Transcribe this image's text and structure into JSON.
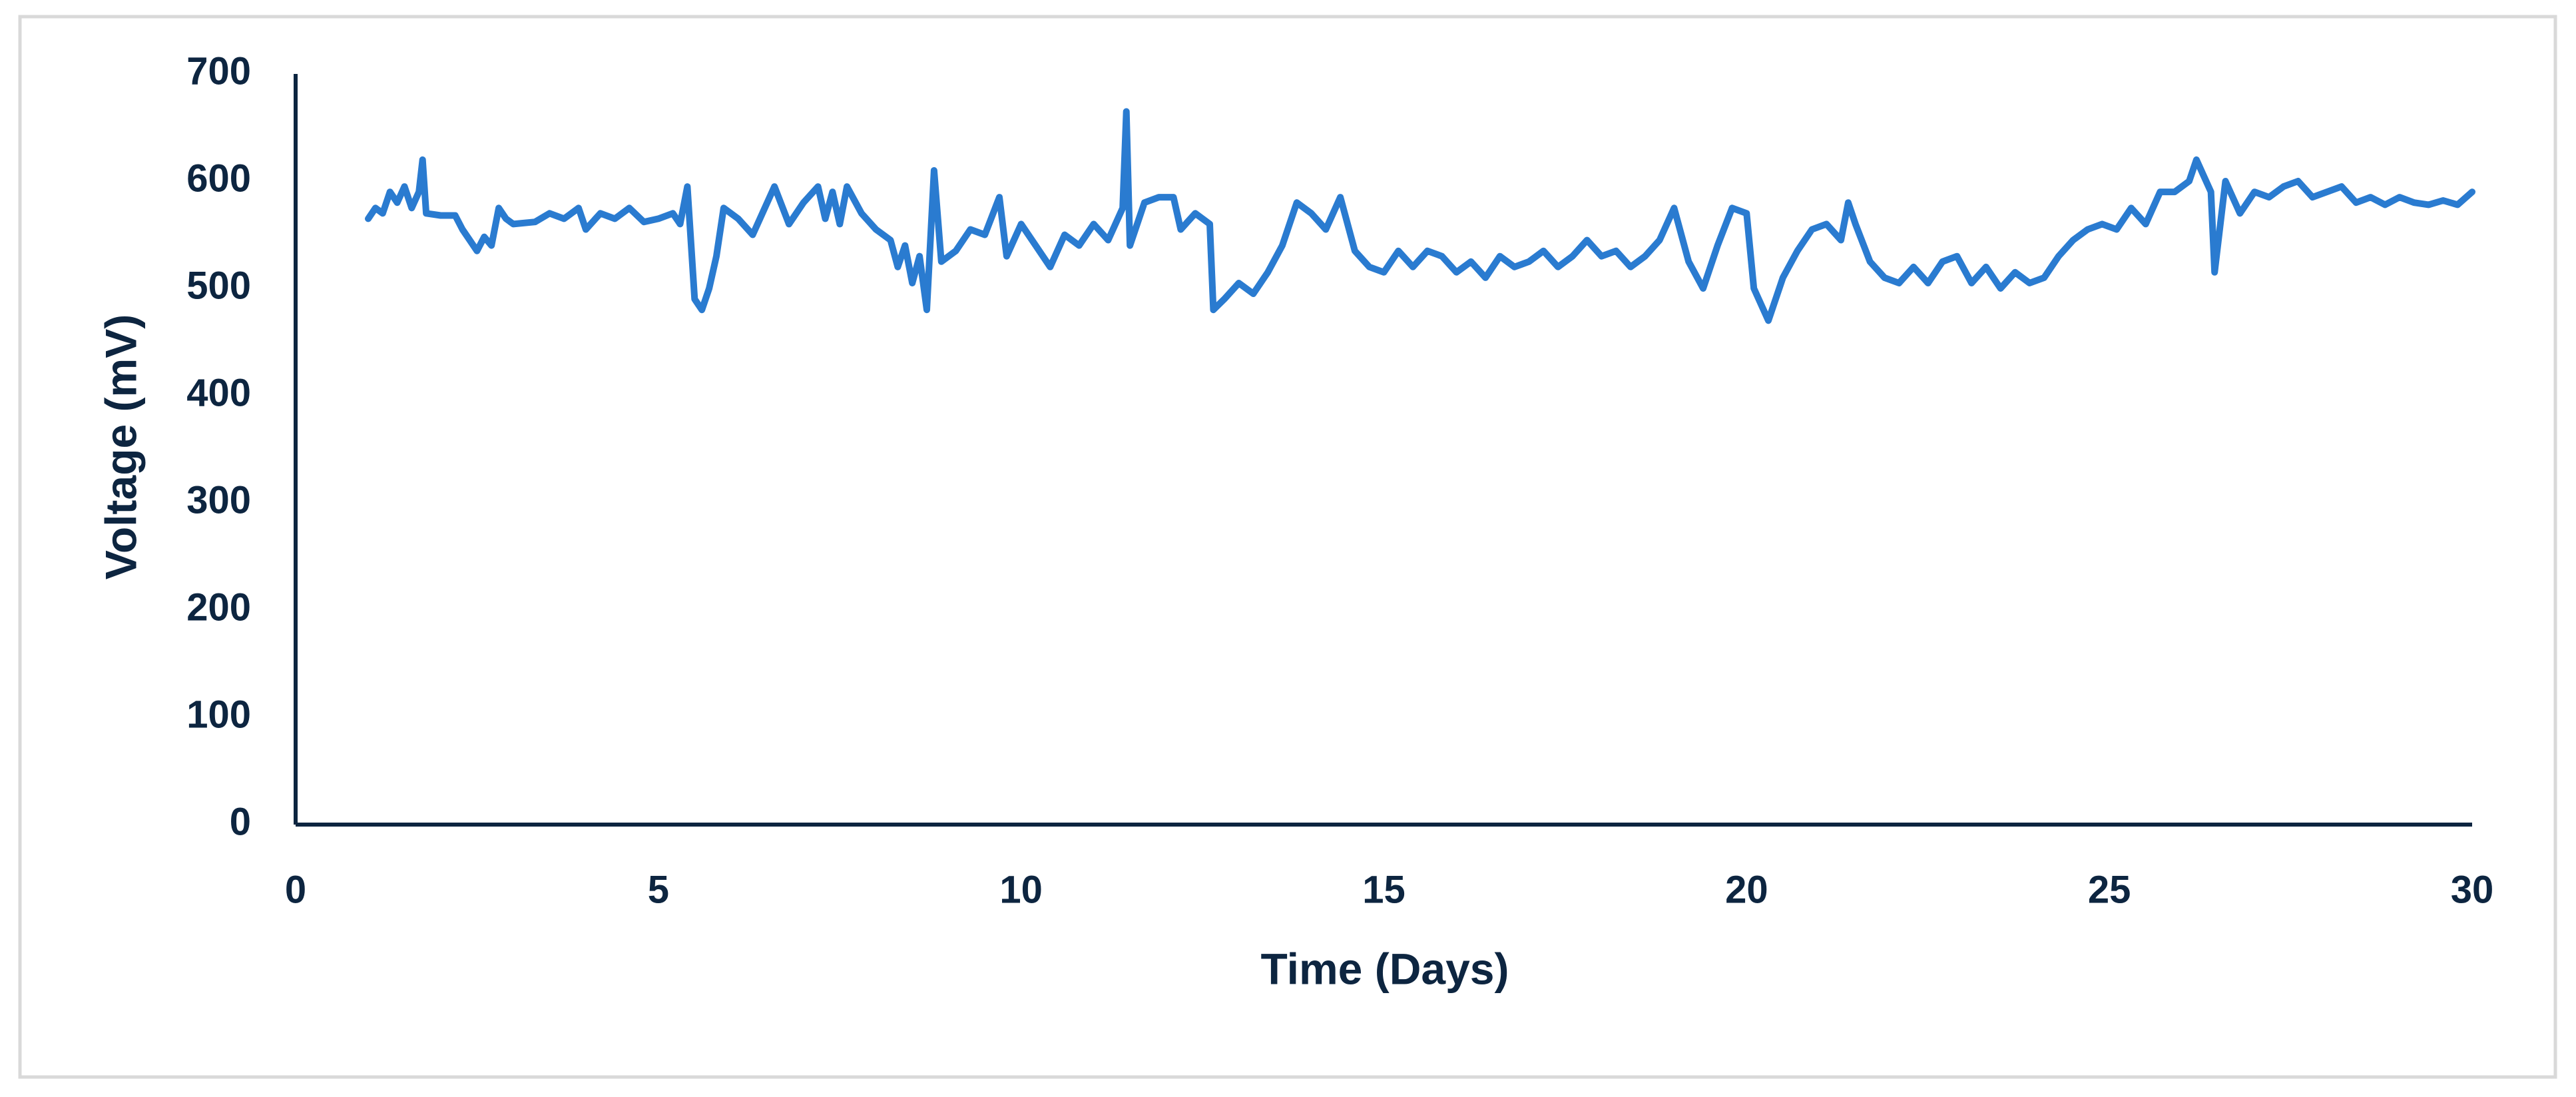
{
  "chart_data": {
    "type": "line",
    "x_label": "Time (Days)",
    "y_label": "Voltage (mV)",
    "color": "#2a7bd0",
    "xlim": [
      0,
      30
    ],
    "xticks": [
      0,
      5,
      10,
      15,
      20,
      25,
      30
    ],
    "ylim": [
      0,
      700
    ],
    "yticks": [
      0,
      100,
      200,
      300,
      400,
      500,
      600,
      700
    ],
    "grid": false,
    "x": [
      1.0,
      1.1,
      1.2,
      1.3,
      1.4,
      1.5,
      1.6,
      1.7,
      1.75,
      1.8,
      2.0,
      2.2,
      2.3,
      2.4,
      2.5,
      2.6,
      2.7,
      2.8,
      2.9,
      3.0,
      3.3,
      3.5,
      3.7,
      3.9,
      4.0,
      4.2,
      4.4,
      4.6,
      4.8,
      5.0,
      5.2,
      5.3,
      5.4,
      5.5,
      5.6,
      5.7,
      5.8,
      5.9,
      6.1,
      6.3,
      6.5,
      6.6,
      6.8,
      7.0,
      7.2,
      7.3,
      7.4,
      7.5,
      7.6,
      7.8,
      8.0,
      8.2,
      8.3,
      8.4,
      8.5,
      8.6,
      8.7,
      8.8,
      8.9,
      9.1,
      9.3,
      9.5,
      9.7,
      9.8,
      10.0,
      10.2,
      10.4,
      10.6,
      10.8,
      11.0,
      11.2,
      11.4,
      11.45,
      11.5,
      11.7,
      11.9,
      12.1,
      12.2,
      12.4,
      12.6,
      12.65,
      12.8,
      13.0,
      13.2,
      13.4,
      13.6,
      13.8,
      14.0,
      14.2,
      14.4,
      14.6,
      14.8,
      15.0,
      15.2,
      15.4,
      15.6,
      15.8,
      16.0,
      16.2,
      16.4,
      16.6,
      16.8,
      17.0,
      17.2,
      17.4,
      17.6,
      17.8,
      18.0,
      18.2,
      18.4,
      18.6,
      18.8,
      19.0,
      19.2,
      19.4,
      19.6,
      19.8,
      20.0,
      20.1,
      20.3,
      20.5,
      20.7,
      20.9,
      21.1,
      21.3,
      21.4,
      21.5,
      21.7,
      21.9,
      22.1,
      22.3,
      22.5,
      22.7,
      22.9,
      23.1,
      23.3,
      23.5,
      23.7,
      23.9,
      24.1,
      24.3,
      24.5,
      24.7,
      24.9,
      25.1,
      25.3,
      25.5,
      25.7,
      25.9,
      26.1,
      26.2,
      26.4,
      26.45,
      26.6,
      26.8,
      27.0,
      27.2,
      27.4,
      27.6,
      27.8,
      28.0,
      28.2,
      28.4,
      28.6,
      28.8,
      29.0,
      29.2,
      29.4,
      29.6,
      29.8,
      30.0
    ],
    "values": [
      565,
      575,
      570,
      590,
      580,
      595,
      575,
      590,
      620,
      570,
      568,
      568,
      555,
      545,
      535,
      548,
      540,
      575,
      565,
      560,
      562,
      570,
      565,
      575,
      555,
      570,
      565,
      575,
      562,
      565,
      570,
      560,
      595,
      490,
      480,
      500,
      530,
      575,
      565,
      550,
      580,
      595,
      560,
      580,
      595,
      565,
      590,
      560,
      595,
      570,
      555,
      545,
      520,
      540,
      505,
      530,
      480,
      610,
      525,
      535,
      555,
      550,
      585,
      530,
      560,
      540,
      520,
      550,
      540,
      560,
      545,
      575,
      665,
      540,
      580,
      585,
      585,
      555,
      570,
      560,
      480,
      490,
      505,
      495,
      515,
      540,
      580,
      570,
      555,
      585,
      535,
      520,
      515,
      535,
      520,
      535,
      530,
      515,
      525,
      510,
      530,
      520,
      525,
      535,
      520,
      530,
      545,
      530,
      535,
      520,
      530,
      545,
      575,
      525,
      500,
      540,
      575,
      570,
      500,
      470,
      510,
      535,
      555,
      560,
      545,
      580,
      560,
      525,
      510,
      505,
      520,
      505,
      525,
      530,
      505,
      520,
      500,
      515,
      505,
      510,
      530,
      545,
      555,
      560,
      555,
      575,
      560,
      590,
      590,
      600,
      620,
      590,
      515,
      600,
      570,
      590,
      585,
      595,
      600,
      585,
      590,
      595,
      580,
      585,
      578,
      585,
      580,
      578,
      582,
      578,
      590
    ]
  }
}
